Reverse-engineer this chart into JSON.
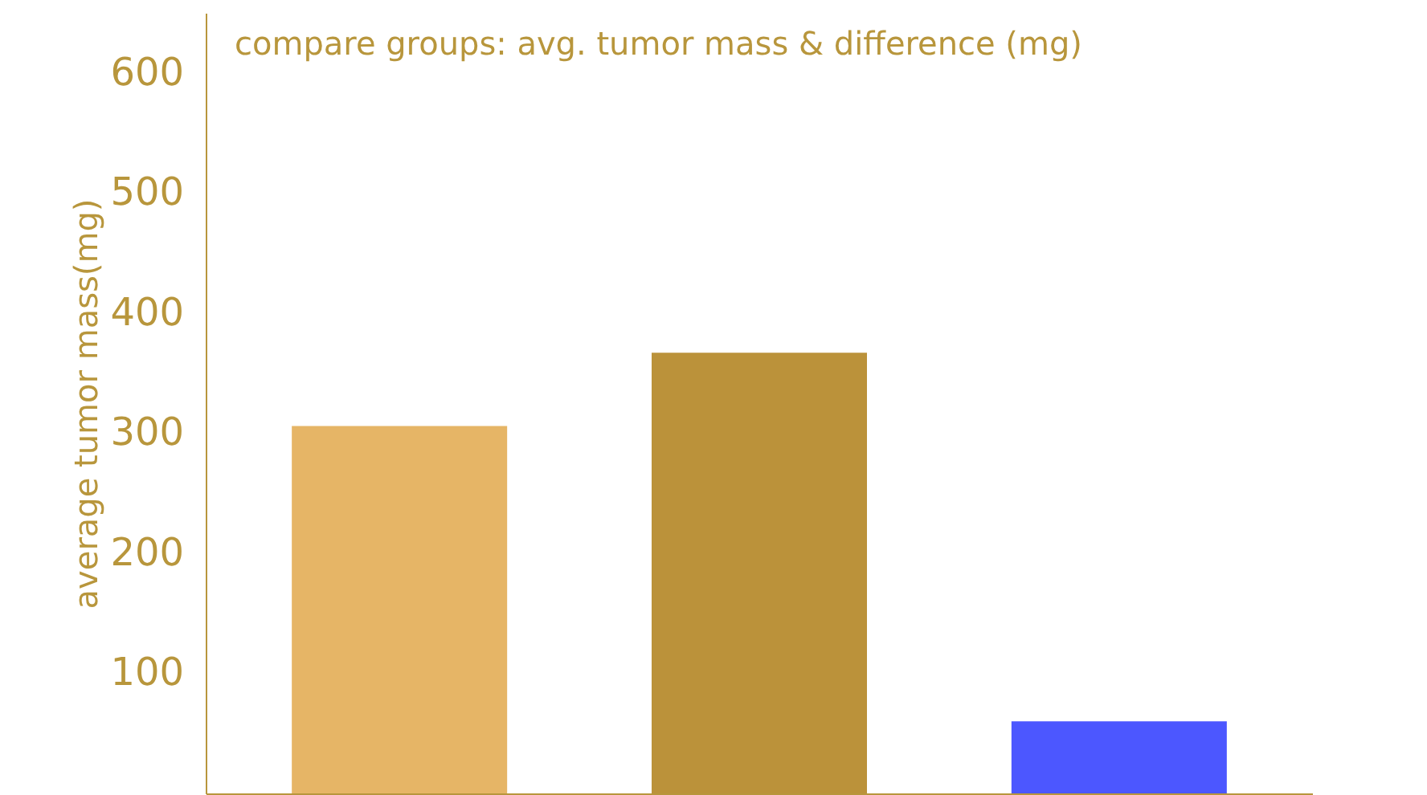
{
  "chart_data": {
    "type": "bar",
    "title": "compare groups: avg. tumor mass & difference (mg)",
    "ylabel": "average tumor mass(mg)",
    "categories": [
      null,
      null,
      null,
      null
    ],
    "values": [
      306,
      367,
      null,
      60
    ],
    "colors": [
      "#e6b566",
      "#bb923a",
      "#e6b566",
      "#4c57ff"
    ],
    "ylim": [
      0,
      650
    ],
    "yticks": [
      100,
      200,
      300,
      400,
      500,
      600
    ],
    "grid": false
  }
}
